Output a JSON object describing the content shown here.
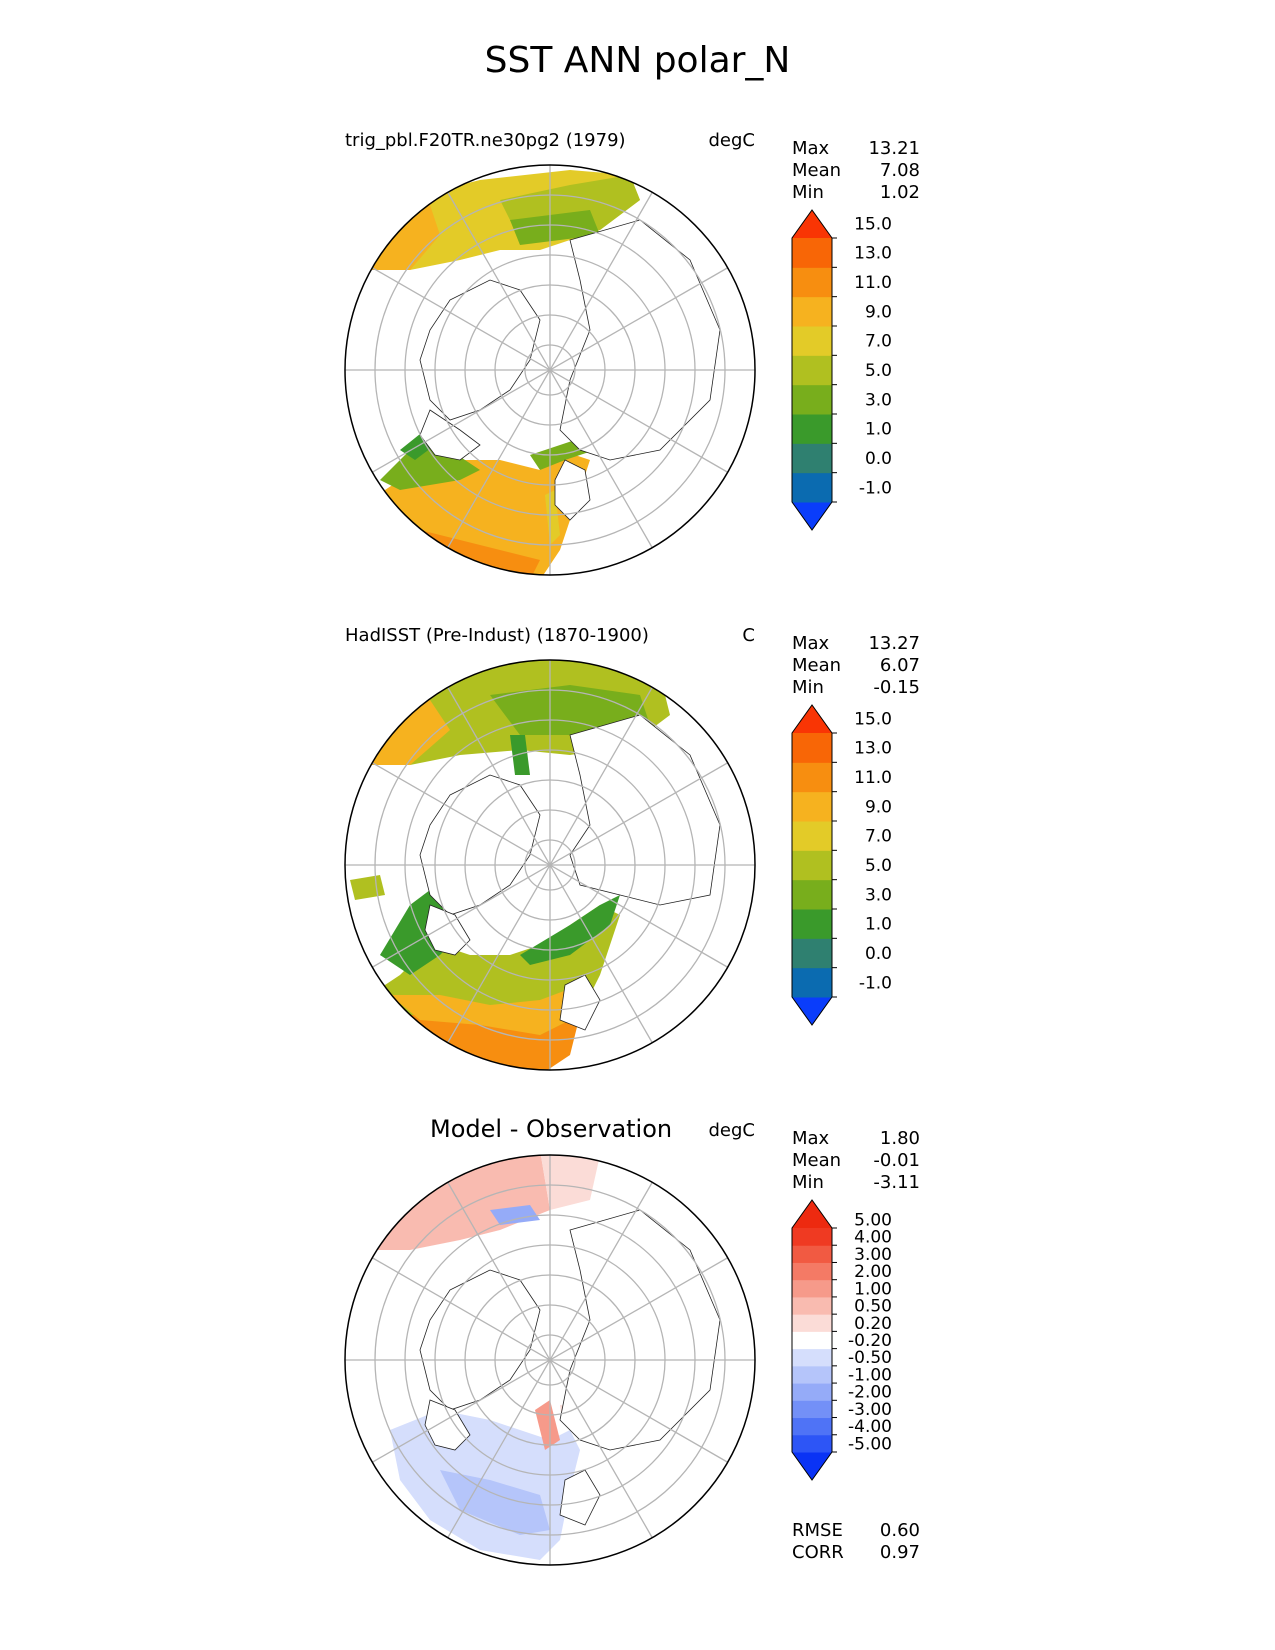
{
  "figure_title": "SST ANN polar_N",
  "chart_data": [
    {
      "type": "polar_map",
      "panel": "test",
      "title": "trig_pbl.F20TR.ne30pg2 (1979)",
      "units": "degC",
      "stats": {
        "max_label": "Max",
        "max": "13.21",
        "mean_label": "Mean",
        "mean": "7.08",
        "min_label": "Min",
        "min": "1.02"
      },
      "colorbar": {
        "levels": [
          -1.0,
          0.0,
          1.0,
          3.0,
          5.0,
          7.0,
          9.0,
          11.0,
          13.0,
          15.0
        ],
        "tick_labels": [
          "-1.0",
          "0.0",
          "1.0",
          "3.0",
          "5.0",
          "7.0",
          "9.0",
          "11.0",
          "13.0",
          "15.0"
        ],
        "colors": [
          "#0a3dfb",
          "#0b6bb0",
          "#2f8070",
          "#3a9a2b",
          "#78ae1c",
          "#b0c020",
          "#e3cb28",
          "#f6b21f",
          "#f78e10",
          "#f86606",
          "#f93504"
        ]
      }
    },
    {
      "type": "polar_map",
      "panel": "reference",
      "title": "HadISST (Pre-Indust) (1870-1900)",
      "units": "C",
      "stats": {
        "max_label": "Max",
        "max": "13.27",
        "mean_label": "Mean",
        "mean": "6.07",
        "min_label": "Min",
        "min": "-0.15"
      },
      "colorbar": {
        "levels": [
          -1.0,
          0.0,
          1.0,
          3.0,
          5.0,
          7.0,
          9.0,
          11.0,
          13.0,
          15.0
        ],
        "tick_labels": [
          "-1.0",
          "0.0",
          "1.0",
          "3.0",
          "5.0",
          "7.0",
          "9.0",
          "11.0",
          "13.0",
          "15.0"
        ],
        "colors": [
          "#0a3dfb",
          "#0b6bb0",
          "#2f8070",
          "#3a9a2b",
          "#78ae1c",
          "#b0c020",
          "#e3cb28",
          "#f6b21f",
          "#f78e10",
          "#f86606",
          "#f93504"
        ]
      }
    },
    {
      "type": "polar_map",
      "panel": "difference",
      "title": "Model - Observation",
      "units": "degC",
      "stats": {
        "max_label": "Max",
        "max": "1.80",
        "mean_label": "Mean",
        "mean": "-0.01",
        "min_label": "Min",
        "min": "-3.11"
      },
      "colorbar": {
        "levels": [
          -5.0,
          -4.0,
          -3.0,
          -2.0,
          -1.0,
          -0.5,
          -0.2,
          0.2,
          0.5,
          1.0,
          2.0,
          3.0,
          4.0,
          5.0
        ],
        "tick_labels": [
          "-5.00",
          "-4.00",
          "-3.00",
          "-2.00",
          "-1.00",
          "-0.50",
          "-0.20",
          "0.20",
          "0.50",
          "1.00",
          "2.00",
          "3.00",
          "4.00",
          "5.00"
        ],
        "colors": [
          "#0a33f5",
          "#2d55f6",
          "#4f73f6",
          "#7390f7",
          "#95abf8",
          "#b5c5fa",
          "#d5defc",
          "#ffffff",
          "#fbdcd7",
          "#f9bbb0",
          "#f69a8a",
          "#f47a65",
          "#f15a42",
          "#ef3a22",
          "#ed2a10"
        ]
      },
      "metrics": {
        "rmse_label": "RMSE",
        "rmse": "0.60",
        "corr_label": "CORR",
        "corr": "0.97"
      }
    }
  ]
}
